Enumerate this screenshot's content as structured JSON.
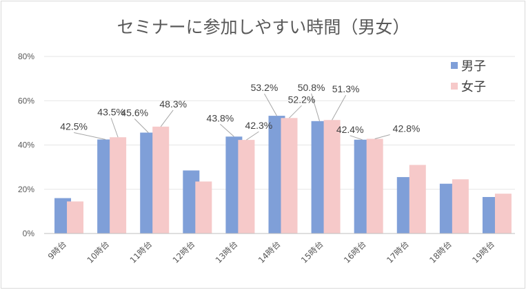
{
  "colors": {
    "male": "#7f9fd8",
    "female": "#f6c9c9",
    "grid": "#e6e6e6",
    "axis": "#bfbfbf",
    "leader": "#a6a6a6"
  },
  "chart_data": {
    "type": "bar",
    "title": "セミナーに参加しやすい時間（男女）",
    "xlabel": "",
    "ylabel": "",
    "ylim": [
      0,
      80
    ],
    "yticks": [
      "0%",
      "20%",
      "40%",
      "60%",
      "80%"
    ],
    "grid": true,
    "legend_position": "top-right",
    "categories": [
      "9時台",
      "10時台",
      "11時台",
      "12時台",
      "13時台",
      "14時台",
      "15時台",
      "16時台",
      "17時台",
      "18時台",
      "19時台"
    ],
    "series": [
      {
        "name": "男子",
        "values": [
          16,
          42.5,
          45.6,
          28.5,
          43.8,
          53.2,
          50.8,
          42.4,
          25.5,
          22.5,
          16.5
        ],
        "data_labels": [
          null,
          "42.5%",
          "45.6%",
          null,
          "43.8%",
          "53.2%",
          "50.8%",
          "42.4%",
          null,
          null,
          null
        ]
      },
      {
        "name": "女子",
        "values": [
          14.5,
          43.5,
          48.3,
          23.5,
          42.3,
          52.2,
          51.3,
          42.8,
          31,
          24.5,
          18
        ],
        "data_labels": [
          null,
          "43.5%",
          "48.3%",
          null,
          "42.3%",
          "52.2%",
          "51.3%",
          "42.8%",
          null,
          null,
          null
        ]
      }
    ]
  }
}
